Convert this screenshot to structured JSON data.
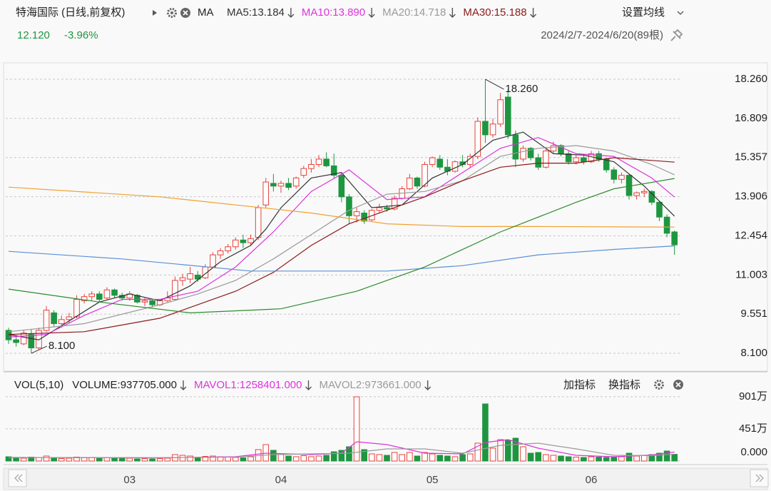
{
  "header": {
    "title": "特海国际 (日线,前复权)",
    "indicator": "MA",
    "settings": "设置均线",
    "price": "12.120",
    "change": "-3.96%",
    "range": "2024/2/7-2024/6/20(89根)",
    "add_indicator": "加指标",
    "switch_indicator": "换指标"
  },
  "chart_data": [
    {
      "type": "candlestick",
      "up_color": "#e8413a",
      "down_color": "#1e9640",
      "grid": true,
      "ylim": [
        7.44,
        18.87
      ],
      "yticks": [
        {
          "value": 8.1,
          "label": "8.100"
        },
        9.551,
        11.003,
        12.454,
        13.906,
        15.357,
        16.809,
        {
          "value": 18.26,
          "label": "18.260"
        }
      ],
      "open": [
        8.95,
        8.6,
        8.45,
        8.8,
        8.3,
        8.95,
        9.6,
        9.2,
        9.35,
        9.45,
        10.05,
        10.2,
        10.3,
        10.15,
        10.45,
        10.25,
        10.15,
        10.25,
        10.0,
        10.05,
        9.9,
        10.05,
        10.1,
        10.8,
        10.85,
        11.0,
        10.9,
        11.3,
        11.75,
        11.9,
        12.05,
        12.3,
        12.2,
        12.4,
        13.6,
        14.4,
        14.3,
        14.4,
        14.3,
        14.7,
        14.95,
        15.1,
        15.3,
        15.05,
        14.7,
        13.9,
        13.2,
        13.3,
        13.05,
        13.4,
        13.5,
        13.45,
        13.85,
        14.2,
        14.6,
        14.3,
        15.1,
        15.3,
        15.0,
        14.85,
        15.2,
        15.1,
        15.4,
        16.7,
        16.2,
        16.6,
        17.6,
        16.2,
        15.3,
        15.7,
        15.35,
        15.0,
        15.6,
        15.8,
        15.5,
        15.2,
        15.35,
        15.2,
        15.5,
        15.3,
        14.9,
        14.55,
        14.7,
        13.95,
        14.05,
        14.1,
        13.7,
        13.15,
        12.6
      ],
      "high": [
        9.05,
        8.75,
        8.95,
        9.0,
        9.05,
        9.85,
        9.7,
        9.5,
        9.6,
        10.25,
        10.3,
        10.4,
        10.4,
        10.55,
        10.5,
        10.35,
        10.4,
        10.3,
        10.15,
        10.1,
        10.1,
        10.4,
        10.95,
        11.05,
        11.3,
        11.15,
        11.4,
        11.85,
        12.0,
        12.15,
        12.4,
        12.5,
        12.5,
        13.6,
        14.6,
        14.75,
        14.5,
        14.6,
        14.65,
        15.05,
        15.3,
        15.45,
        15.55,
        15.5,
        14.8,
        14.0,
        13.5,
        13.4,
        13.45,
        13.65,
        13.6,
        13.95,
        14.3,
        14.75,
        14.65,
        15.2,
        15.4,
        15.45,
        15.3,
        15.25,
        15.45,
        15.5,
        16.85,
        18.26,
        16.8,
        17.75,
        17.9,
        16.35,
        15.8,
        15.75,
        15.5,
        15.75,
        15.95,
        15.85,
        15.6,
        15.45,
        15.5,
        15.6,
        15.6,
        15.35,
        15.0,
        14.8,
        14.75,
        14.1,
        14.2,
        14.15,
        13.75,
        13.25,
        12.65
      ],
      "low": [
        8.45,
        8.35,
        8.4,
        8.1,
        8.25,
        8.9,
        9.1,
        9.05,
        9.2,
        9.4,
        9.95,
        10.05,
        10.0,
        10.1,
        10.15,
        10.05,
        10.05,
        9.95,
        9.85,
        9.8,
        9.85,
        10.0,
        10.05,
        10.6,
        10.7,
        10.75,
        10.85,
        11.25,
        11.6,
        11.8,
        11.95,
        12.0,
        12.1,
        12.3,
        13.5,
        14.1,
        14.05,
        14.15,
        14.2,
        14.6,
        14.8,
        15.0,
        15.0,
        14.6,
        13.7,
        12.9,
        12.95,
        12.9,
        13.0,
        13.3,
        13.35,
        13.4,
        13.8,
        14.15,
        14.2,
        14.25,
        15.0,
        14.9,
        14.7,
        14.8,
        15.0,
        15.0,
        15.3,
        15.9,
        16.1,
        16.5,
        16.05,
        15.0,
        15.2,
        15.25,
        14.9,
        14.95,
        15.5,
        15.4,
        15.1,
        15.1,
        15.1,
        15.15,
        15.2,
        14.8,
        14.4,
        14.4,
        13.8,
        13.8,
        13.9,
        13.6,
        13.0,
        12.4,
        11.75
      ],
      "close": [
        8.6,
        8.5,
        8.85,
        8.3,
        8.95,
        9.7,
        9.2,
        9.35,
        9.45,
        10.1,
        10.2,
        10.3,
        10.1,
        10.45,
        10.25,
        10.15,
        10.3,
        10.0,
        10.05,
        9.9,
        10.05,
        10.15,
        10.8,
        10.9,
        11.05,
        10.85,
        11.3,
        11.75,
        11.9,
        12.05,
        12.3,
        12.2,
        12.35,
        13.5,
        14.45,
        14.3,
        14.4,
        14.25,
        14.6,
        14.95,
        15.1,
        15.3,
        15.05,
        14.7,
        13.9,
        13.2,
        13.35,
        13.0,
        13.4,
        13.5,
        13.45,
        13.85,
        14.2,
        14.6,
        14.3,
        15.1,
        15.35,
        15.0,
        14.85,
        15.2,
        15.1,
        15.4,
        16.7,
        16.2,
        16.6,
        17.5,
        16.2,
        15.3,
        15.7,
        15.35,
        15.0,
        15.6,
        15.8,
        15.5,
        15.2,
        15.35,
        15.2,
        15.5,
        15.3,
        14.9,
        14.55,
        14.7,
        13.95,
        14.05,
        14.1,
        13.7,
        13.15,
        12.55,
        12.12
      ],
      "series": [
        {
          "name": "MA5:13.184",
          "color": "#333333",
          "x": [
            0,
            4,
            8,
            12,
            16,
            20,
            24,
            28,
            32,
            34,
            36,
            40,
            44,
            48,
            52,
            56,
            60,
            64,
            68,
            72,
            76,
            80,
            84,
            88
          ],
          "values": [
            8.8,
            8.6,
            9.3,
            10.0,
            10.3,
            10.05,
            10.6,
            11.5,
            12.1,
            12.7,
            13.5,
            14.6,
            14.8,
            13.5,
            13.6,
            14.6,
            15.1,
            16.0,
            16.3,
            15.5,
            15.45,
            15.2,
            14.3,
            13.184
          ]
        },
        {
          "name": "MA10:13.890",
          "color": "#dd33dd",
          "x": [
            0,
            5,
            10,
            15,
            20,
            25,
            30,
            35,
            40,
            45,
            50,
            55,
            60,
            65,
            70,
            75,
            80,
            85,
            88
          ],
          "values": [
            8.7,
            8.8,
            9.5,
            10.1,
            10.1,
            10.4,
            11.3,
            12.6,
            14.1,
            14.9,
            13.8,
            13.9,
            14.8,
            15.7,
            16.1,
            15.5,
            15.4,
            14.6,
            13.89
          ]
        },
        {
          "name": "MA20:14.718",
          "color": "#9a9a9a",
          "x": [
            0,
            10,
            20,
            25,
            30,
            35,
            40,
            45,
            50,
            55,
            60,
            65,
            70,
            75,
            80,
            85,
            88
          ],
          "values": [
            8.9,
            9.2,
            9.9,
            10.3,
            10.8,
            11.6,
            12.5,
            13.4,
            14.0,
            14.1,
            14.5,
            15.4,
            15.7,
            15.8,
            15.6,
            15.1,
            14.718
          ]
        },
        {
          "name": "MA30:15.188",
          "color": "#8b1a1a",
          "x": [
            0,
            10,
            20,
            30,
            35,
            40,
            45,
            50,
            55,
            60,
            65,
            70,
            75,
            80,
            85,
            88
          ],
          "values": [
            8.8,
            8.9,
            9.4,
            10.4,
            11.1,
            12.1,
            12.9,
            13.4,
            13.9,
            14.5,
            15.0,
            15.15,
            15.15,
            15.35,
            15.25,
            15.188
          ]
        },
        {
          "color": "#f0a030",
          "x": [
            0,
            20,
            40,
            50,
            60,
            70,
            88
          ],
          "values": [
            14.26,
            13.9,
            13.3,
            12.9,
            12.8,
            12.8,
            12.78
          ]
        },
        {
          "color": "#5b8fd6",
          "x": [
            0,
            15,
            32,
            50,
            60,
            70,
            80,
            88
          ],
          "values": [
            11.88,
            11.6,
            11.15,
            11.15,
            11.35,
            11.75,
            11.95,
            12.08
          ]
        },
        {
          "color": "#2e8b2e",
          "x": [
            0,
            12,
            24,
            36,
            46,
            55,
            65,
            75,
            80,
            88
          ],
          "values": [
            10.48,
            10.0,
            9.6,
            9.75,
            10.4,
            11.3,
            12.6,
            13.7,
            14.2,
            14.58
          ]
        }
      ],
      "annotations": [
        {
          "label": "18.260",
          "value": 18.26,
          "x": 63
        },
        {
          "label": "8.100",
          "value": 8.1,
          "x": 3
        }
      ]
    },
    {
      "type": "volume",
      "title": "VOL(5,10)",
      "name": "VOLUME:937705.000",
      "ylim": [
        0,
        940
      ],
      "yticks": [
        {
          "value": 0,
          "label": "0.000"
        },
        {
          "value": 451,
          "label": "451万"
        },
        {
          "value": 901,
          "label": "901万"
        }
      ],
      "categories": [
        null,
        null,
        null,
        null,
        null,
        null,
        null,
        null,
        null,
        null,
        null,
        null,
        null,
        null,
        null,
        null,
        "03",
        null,
        null,
        null,
        null,
        null,
        null,
        null,
        null,
        null,
        null,
        null,
        null,
        null,
        null,
        null,
        null,
        null,
        null,
        null,
        "04",
        null,
        null,
        null,
        null,
        null,
        null,
        null,
        null,
        null,
        null,
        null,
        null,
        null,
        null,
        null,
        null,
        null,
        null,
        null,
        "05",
        null,
        null,
        null,
        null,
        null,
        null,
        null,
        null,
        null,
        null,
        null,
        null,
        null,
        null,
        null,
        null,
        null,
        null,
        null,
        null,
        "06",
        null,
        null,
        null,
        null,
        null,
        null,
        null,
        null,
        null,
        null,
        null
      ],
      "values": [
        60,
        45,
        40,
        55,
        50,
        70,
        40,
        35,
        40,
        55,
        45,
        50,
        35,
        45,
        40,
        35,
        40,
        30,
        35,
        30,
        35,
        40,
        90,
        80,
        70,
        50,
        65,
        70,
        60,
        55,
        50,
        45,
        60,
        160,
        230,
        150,
        90,
        70,
        60,
        75,
        60,
        70,
        80,
        130,
        150,
        200,
        900,
        160,
        100,
        90,
        80,
        120,
        90,
        120,
        70,
        120,
        100,
        80,
        70,
        60,
        90,
        100,
        250,
        800,
        180,
        300,
        290,
        320,
        200,
        110,
        120,
        90,
        80,
        70,
        60,
        55,
        50,
        60,
        55,
        50,
        55,
        60,
        110,
        70,
        80,
        90,
        110,
        140,
        93.77
      ],
      "series": [
        {
          "name": "MAVOL1:1258401.000",
          "color": "#dd33dd",
          "x": [
            0,
            10,
            20,
            30,
            34,
            40,
            44,
            46,
            50,
            55,
            60,
            63,
            66,
            70,
            75,
            80,
            85,
            88
          ],
          "values": [
            50,
            48,
            45,
            60,
            110,
            90,
            110,
            270,
            230,
            110,
            100,
            260,
            300,
            180,
            80,
            60,
            85,
            125.84
          ]
        },
        {
          "name": "MAVOL2:973661.000",
          "color": "#9a9a9a",
          "x": [
            0,
            10,
            20,
            30,
            35,
            40,
            45,
            50,
            55,
            60,
            65,
            70,
            75,
            80,
            85,
            88
          ],
          "values": [
            50,
            48,
            47,
            55,
            90,
            100,
            110,
            170,
            170,
            110,
            220,
            250,
            170,
            80,
            75,
            97.37
          ]
        }
      ]
    }
  ]
}
